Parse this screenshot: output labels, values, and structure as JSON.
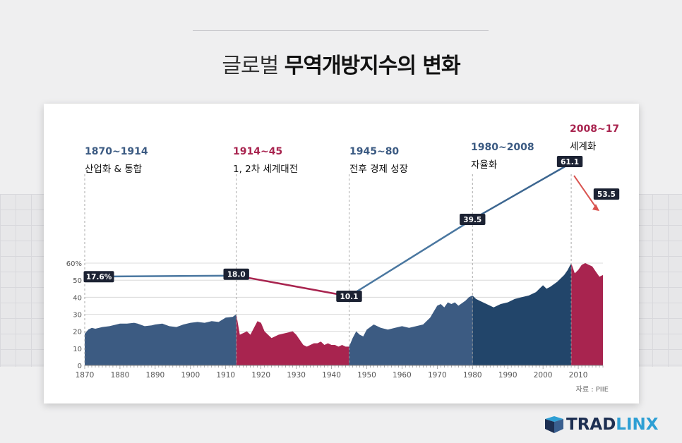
{
  "header": {
    "title_light": "글로벌",
    "title_bold": "무역개방지수의 변화"
  },
  "source": "자료 : PIIE",
  "logo": {
    "part1": "TRAD",
    "part2": "LINX"
  },
  "colors": {
    "blue": "#3c5b82",
    "blue_dark": "#22456a",
    "red": "#a8244f",
    "line_blue": "#4a77a0",
    "label_bg": "#1c2233",
    "arrow": "#d9534f"
  },
  "chart_data": {
    "type": "area",
    "xlabel": "",
    "ylabel": "",
    "ylim": [
      0,
      60
    ],
    "xlim": [
      1870,
      2017
    ],
    "grid": true,
    "x_ticks": [
      1870,
      1880,
      1890,
      1900,
      1910,
      1920,
      1930,
      1940,
      1950,
      1960,
      1970,
      1980,
      1990,
      2000,
      2010
    ],
    "y_ticks": [
      0,
      10,
      20,
      30,
      40,
      50,
      60
    ],
    "y_tick_labels": [
      "0",
      "10",
      "20",
      "30",
      "40",
      "50",
      "60%"
    ],
    "series": [
      {
        "x": [
          1870,
          1871,
          1872,
          1873,
          1875,
          1877,
          1879,
          1880,
          1882,
          1884,
          1885,
          1887,
          1889,
          1890,
          1892,
          1894,
          1896,
          1898,
          1900,
          1902,
          1904,
          1906,
          1908,
          1910,
          1912,
          1913,
          1914,
          1915,
          1916,
          1917,
          1918,
          1919,
          1920,
          1921,
          1923,
          1925,
          1927,
          1929,
          1930,
          1931,
          1932,
          1933,
          1934,
          1935,
          1936,
          1937,
          1938,
          1939,
          1940,
          1941,
          1942,
          1943,
          1944,
          1945,
          1946,
          1947,
          1948,
          1949,
          1950,
          1952,
          1954,
          1956,
          1958,
          1960,
          1962,
          1964,
          1966,
          1968,
          1970,
          1971,
          1972,
          1973,
          1974,
          1975,
          1976,
          1978,
          1979,
          1980,
          1981,
          1982,
          1983,
          1984,
          1985,
          1986,
          1988,
          1990,
          1992,
          1994,
          1996,
          1998,
          2000,
          2001,
          2002,
          2004,
          2006,
          2007,
          2008,
          2009,
          2010,
          2011,
          2012,
          2013,
          2014,
          2015,
          2016,
          2017
        ],
        "values": [
          18.5,
          21,
          22,
          21.5,
          22.5,
          23,
          24,
          24.5,
          24.5,
          25,
          24.5,
          23,
          23.5,
          24,
          24.5,
          23,
          22.5,
          24,
          25,
          25.5,
          25,
          26,
          25.5,
          28,
          28.5,
          30,
          18,
          19,
          20,
          18,
          22,
          26,
          25,
          20,
          16,
          18,
          19,
          20,
          18,
          15,
          12,
          11,
          12,
          13,
          13,
          14,
          12,
          13,
          12,
          12,
          11,
          12,
          11,
          11,
          16,
          20,
          18,
          17,
          21,
          24,
          22,
          21,
          22,
          23,
          22,
          23,
          24,
          28,
          35,
          36,
          34,
          37,
          36,
          37,
          35,
          38,
          40,
          41,
          39,
          38,
          37,
          36,
          35,
          34,
          36,
          37,
          39,
          40,
          41,
          43,
          47,
          45,
          46,
          49,
          53,
          56,
          60,
          54,
          56,
          59,
          60,
          59,
          58,
          55,
          52,
          53
        ]
      }
    ],
    "era_colors": [
      {
        "from": 1870,
        "to": 1913,
        "color": "blue"
      },
      {
        "from": 1913,
        "to": 1945,
        "color": "red"
      },
      {
        "from": 1945,
        "to": 1980,
        "color": "blue"
      },
      {
        "from": 1980,
        "to": 2008,
        "color": "blue_dark"
      },
      {
        "from": 2008,
        "to": 2017,
        "color": "red"
      }
    ],
    "index_line": [
      {
        "year": 1870,
        "value": 17.6,
        "label": "17.6%"
      },
      {
        "year": 1913,
        "value": 18.0,
        "label": "18.0"
      },
      {
        "year": 1945,
        "value": 10.1,
        "label": "10.1"
      },
      {
        "year": 1980,
        "value": 39.5,
        "label": "39.5"
      },
      {
        "year": 2008,
        "value": 61.1,
        "label": "61.1"
      },
      {
        "year": 2017,
        "value": 53.5,
        "label": "53.5"
      }
    ],
    "periods": [
      {
        "range": "1870~1914",
        "desc": "산업화 & 통합",
        "color": "blue"
      },
      {
        "range": "1914~45",
        "desc": "1, 2차 세계대전",
        "color": "red"
      },
      {
        "range": "1945~80",
        "desc": "전후 경제 성장",
        "color": "blue"
      },
      {
        "range": "1980~2008",
        "desc": "자율화",
        "color": "blue"
      },
      {
        "range": "2008~17",
        "desc": "세계화",
        "color": "red"
      }
    ]
  }
}
